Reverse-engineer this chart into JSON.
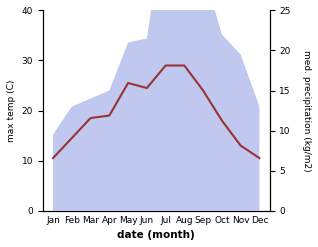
{
  "months": [
    "Jan",
    "Feb",
    "Mar",
    "Apr",
    "May",
    "Jun",
    "Jul",
    "Aug",
    "Sep",
    "Oct",
    "Nov",
    "Dec"
  ],
  "max_temp": [
    10.5,
    14.5,
    18.5,
    19.0,
    25.5,
    24.5,
    29.0,
    29.0,
    24.0,
    18.0,
    13.0,
    10.5
  ],
  "precipitation": [
    9.5,
    13.0,
    14.0,
    15.0,
    21.0,
    21.5,
    37.0,
    35.5,
    30.0,
    22.0,
    19.5,
    13.0
  ],
  "temp_color": "#993333",
  "precip_fill_color": "#c0c8f0",
  "left_ylim": [
    0,
    40
  ],
  "right_ylim": [
    0,
    25
  ],
  "left_yticks": [
    0,
    10,
    20,
    30,
    40
  ],
  "right_yticks": [
    0,
    5,
    10,
    15,
    20,
    25
  ],
  "xlabel": "date (month)",
  "ylabel_left": "max temp (C)",
  "ylabel_right": "med. precipitation (kg/m2)",
  "bg_color": "#ffffff"
}
